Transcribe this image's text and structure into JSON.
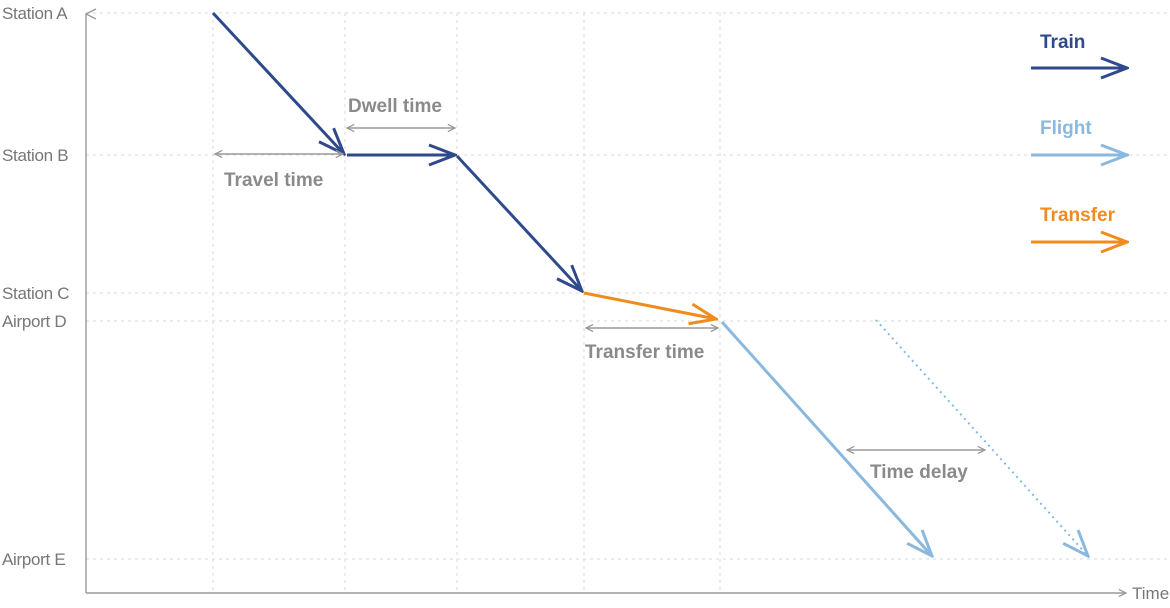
{
  "colors": {
    "train": "#2f4a8c",
    "flight": "#8ab8de",
    "transfer": "#f08c1e",
    "annotation": "#8a8a8a",
    "axis": "#9a9a9a",
    "grid": "#d9d9d9"
  },
  "stations": [
    "Station A",
    "Station B",
    "Station C",
    "Airport D",
    "Airport E"
  ],
  "axis": {
    "x_label": "Time"
  },
  "legend": [
    {
      "label": "Train",
      "kind": "train"
    },
    {
      "label": "Flight",
      "kind": "flight"
    },
    {
      "label": "Transfer",
      "kind": "transfer"
    }
  ],
  "annotations": {
    "travel_time": "Travel time",
    "dwell_time": "Dwell time",
    "transfer_time": "Transfer time",
    "time_delay": "Time delay"
  }
}
